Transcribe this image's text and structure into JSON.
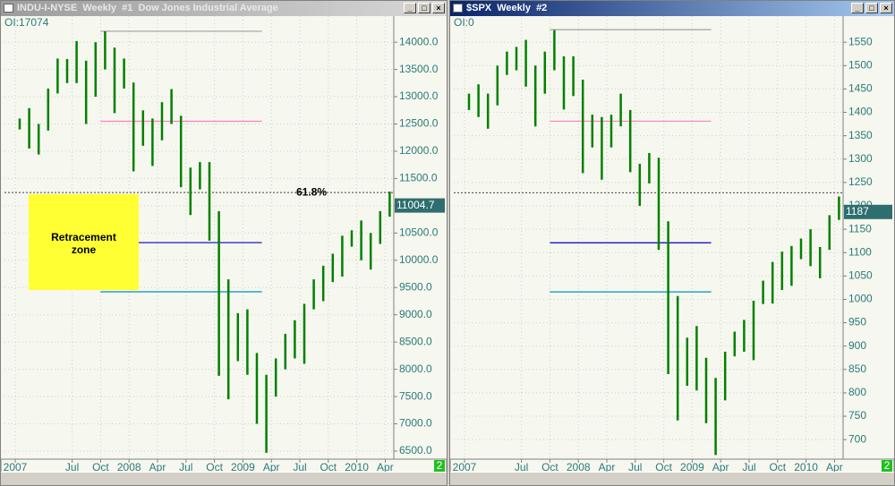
{
  "chart_data": [
    {
      "type": "bar_hl",
      "title": "INDU-I-NYSE  Weekly  #1  Dow Jones Industrial Average",
      "oi_label": "OI:17074",
      "x": [
        "2007-01",
        "2007-02",
        "2007-03",
        "2007-04",
        "2007-05",
        "2007-06",
        "2007-07",
        "2007-08",
        "2007-09",
        "2007-10",
        "2007-11",
        "2007-12",
        "2008-01",
        "2008-02",
        "2008-03",
        "2008-04",
        "2008-05",
        "2008-06",
        "2008-07",
        "2008-08",
        "2008-09",
        "2008-10",
        "2008-11",
        "2008-12",
        "2009-01",
        "2009-02",
        "2009-03",
        "2009-04",
        "2009-05",
        "2009-06",
        "2009-07",
        "2009-08",
        "2009-09",
        "2009-10",
        "2009-11",
        "2009-12",
        "2010-01",
        "2010-02",
        "2010-03",
        "2010-04"
      ],
      "high": [
        12600,
        12790,
        12500,
        13150,
        13700,
        13690,
        14020,
        13660,
        14000,
        14200,
        13900,
        13700,
        13260,
        12750,
        12600,
        12900,
        13140,
        12650,
        11700,
        11800,
        11800,
        10900,
        9650,
        9030,
        9100,
        8300,
        7900,
        8200,
        8650,
        8900,
        9200,
        9650,
        9900,
        10120,
        10450,
        10550,
        10730,
        10500,
        10900,
        11260
      ],
      "low": [
        12400,
        12050,
        11940,
        12380,
        13060,
        13250,
        13250,
        12500,
        13000,
        13500,
        12700,
        13150,
        11630,
        12100,
        11730,
        12200,
        12500,
        11340,
        10830,
        11300,
        10360,
        7880,
        7450,
        8150,
        7900,
        7000,
        6470,
        7500,
        8000,
        8200,
        8100,
        9100,
        9250,
        9600,
        9700,
        10250,
        10000,
        9830,
        10300,
        10800
      ],
      "color": "#008000",
      "ylim": [
        6385,
        14265
      ],
      "yticks": [
        {
          "value": 6500,
          "label": "6500.0"
        },
        {
          "value": 7000,
          "label": "7000.0"
        },
        {
          "value": 7500,
          "label": "7500.0"
        },
        {
          "value": 8000,
          "label": "8000.0"
        },
        {
          "value": 8500,
          "label": "8500.0"
        },
        {
          "value": 9000,
          "label": "9000.0"
        },
        {
          "value": 9500,
          "label": "9500.0"
        },
        {
          "value": 10000,
          "label": "10000.0"
        },
        {
          "value": 10500,
          "label": "10500.0"
        },
        {
          "value": 11000,
          "label": "11000.0"
        },
        {
          "value": 11500,
          "label": "11500.0"
        },
        {
          "value": 12000,
          "label": "12000.0"
        },
        {
          "value": 12500,
          "label": "12500.0"
        },
        {
          "value": 13000,
          "label": "13000.0"
        },
        {
          "value": 13500,
          "label": "13500.0"
        },
        {
          "value": 14000,
          "label": "14000.0"
        }
      ],
      "xticks": [
        {
          "value": "2007-01",
          "label": "2007"
        },
        {
          "value": "2007-07",
          "label": "Jul"
        },
        {
          "value": "2007-10",
          "label": "Oct"
        },
        {
          "value": "2008-01",
          "label": "2008"
        },
        {
          "value": "2008-04",
          "label": "Apr"
        },
        {
          "value": "2008-07",
          "label": "Jul"
        },
        {
          "value": "2008-10",
          "label": "Oct"
        },
        {
          "value": "2009-01",
          "label": "2009"
        },
        {
          "value": "2009-04",
          "label": "Apr"
        },
        {
          "value": "2009-07",
          "label": "Jul"
        },
        {
          "value": "2009-10",
          "label": "Oct"
        },
        {
          "value": "2010-01",
          "label": "2010"
        },
        {
          "value": "2010-04",
          "label": "Apr"
        }
      ],
      "grid": true,
      "levels": [
        {
          "value": 14200,
          "color": "#a0a0a0"
        },
        {
          "value": 12550,
          "color": "#ff80c0"
        },
        {
          "value": 10324,
          "color": "#0000c0"
        },
        {
          "value": 9422,
          "color": "#0090c0"
        }
      ],
      "level_range": [
        "2007-10",
        "2009-03"
      ],
      "midline": {
        "value": 11243,
        "label": "61.8%"
      },
      "last_value": 11004.7,
      "badge": "2",
      "zone_label": "Retracement zone"
    },
    {
      "type": "bar_hl",
      "title": "$SPX  Weekly  #2",
      "oi_label": "OI:0",
      "x": [
        "2007-01",
        "2007-02",
        "2007-03",
        "2007-04",
        "2007-05",
        "2007-06",
        "2007-07",
        "2007-08",
        "2007-09",
        "2007-10",
        "2007-11",
        "2007-12",
        "2008-01",
        "2008-02",
        "2008-03",
        "2008-04",
        "2008-05",
        "2008-06",
        "2008-07",
        "2008-08",
        "2008-09",
        "2008-10",
        "2008-11",
        "2008-12",
        "2009-01",
        "2009-02",
        "2009-03",
        "2009-04",
        "2009-05",
        "2009-06",
        "2009-07",
        "2009-08",
        "2009-09",
        "2009-10",
        "2009-11",
        "2009-12",
        "2010-01",
        "2010-02",
        "2010-03",
        "2010-04"
      ],
      "high": [
        1440,
        1460,
        1440,
        1500,
        1530,
        1540,
        1555,
        1500,
        1530,
        1576,
        1520,
        1520,
        1470,
        1395,
        1390,
        1395,
        1440,
        1405,
        1290,
        1313,
        1303,
        1167,
        1007,
        918,
        943,
        875,
        832,
        888,
        931,
        956,
        997,
        1040,
        1080,
        1102,
        1114,
        1130,
        1150,
        1112,
        1180,
        1220
      ],
      "low": [
        1405,
        1390,
        1365,
        1415,
        1480,
        1490,
        1455,
        1370,
        1440,
        1490,
        1406,
        1435,
        1270,
        1325,
        1256,
        1325,
        1370,
        1272,
        1200,
        1248,
        1106,
        840,
        741,
        815,
        805,
        735,
        667,
        784,
        878,
        888,
        870,
        990,
        991,
        1020,
        1029,
        1086,
        1071,
        1045,
        1106,
        1170
      ],
      "color": "#008000",
      "ylim": [
        662,
        1581
      ],
      "yticks": [
        700,
        750,
        800,
        850,
        900,
        950,
        1000,
        1050,
        1100,
        1150,
        1200,
        1250,
        1300,
        1350,
        1400,
        1450,
        1500,
        1550
      ],
      "xticks": [
        {
          "value": "2007-01",
          "label": "2007"
        },
        {
          "value": "2007-07",
          "label": "Jul"
        },
        {
          "value": "2007-10",
          "label": "Oct"
        },
        {
          "value": "2008-01",
          "label": "2008"
        },
        {
          "value": "2008-04",
          "label": "Apr"
        },
        {
          "value": "2008-07",
          "label": "Jul"
        },
        {
          "value": "2008-10",
          "label": "Oct"
        },
        {
          "value": "2009-01",
          "label": "2009"
        },
        {
          "value": "2009-04",
          "label": "Apr"
        },
        {
          "value": "2009-07",
          "label": "Jul"
        },
        {
          "value": "2009-10",
          "label": "Oct"
        },
        {
          "value": "2010-01",
          "label": "2010"
        },
        {
          "value": "2010-04",
          "label": "Apr"
        }
      ],
      "grid": true,
      "levels": [
        {
          "value": 1577,
          "color": "#a0a0a0"
        },
        {
          "value": 1381,
          "color": "#ff80c0"
        },
        {
          "value": 1121,
          "color": "#0000c0"
        },
        {
          "value": 1016,
          "color": "#0090c0"
        }
      ],
      "level_range": [
        "2007-10",
        "2009-03"
      ],
      "midline": {
        "value": 1228
      },
      "last_value": 1187,
      "badge": "2"
    }
  ]
}
